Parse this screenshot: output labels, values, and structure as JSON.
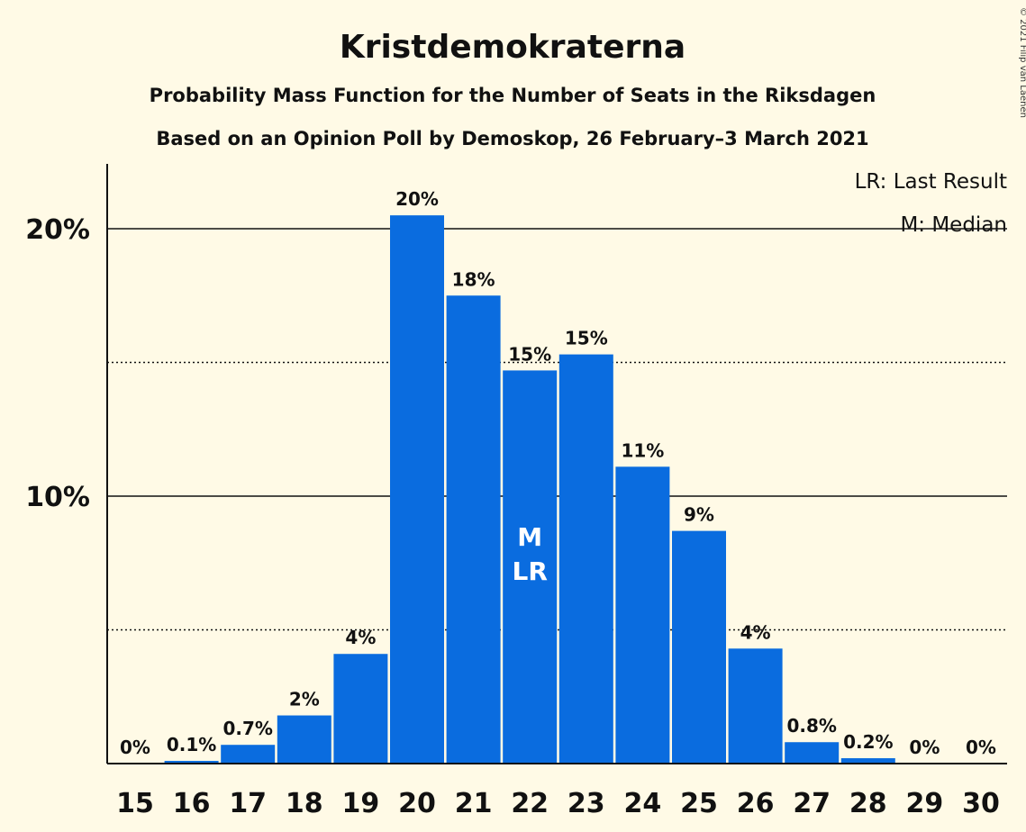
{
  "header": {
    "title": "Kristdemokraterna",
    "subtitle1": "Probability Mass Function for the Number of Seats in the Riksdagen",
    "subtitle2": "Based on an Opinion Poll by Demoskop, 26 February–3 March 2021"
  },
  "legend": {
    "last_result": "LR: Last Result",
    "median": "M: Median"
  },
  "credit": "© 2021 Filip van Laenen",
  "colors": {
    "background": "#fffae6",
    "bar": "#0a6cdf",
    "text": "#111111"
  },
  "chart_data": {
    "type": "bar",
    "categories": [
      "15",
      "16",
      "17",
      "18",
      "19",
      "20",
      "21",
      "22",
      "23",
      "24",
      "25",
      "26",
      "27",
      "28",
      "29",
      "30"
    ],
    "values": [
      0,
      0.1,
      0.7,
      1.8,
      4.1,
      20.5,
      17.5,
      14.7,
      15.3,
      11.1,
      8.7,
      4.3,
      0.8,
      0.2,
      0,
      0
    ],
    "data_labels": [
      "0%",
      "0.1%",
      "0.7%",
      "2%",
      "4%",
      "20%",
      "18%",
      "15%",
      "15%",
      "11%",
      "9%",
      "4%",
      "0.8%",
      "0.2%",
      "0%",
      "0%"
    ],
    "ylim": [
      0,
      22.5
    ],
    "yticks": [
      {
        "value": 10,
        "label": "10%",
        "style": "solid"
      },
      {
        "value": 20,
        "label": "20%",
        "style": "solid"
      }
    ],
    "minor_gridlines": [
      5,
      15
    ],
    "median_category": "22",
    "last_result_category": "22",
    "median_marker": "M",
    "last_result_marker": "LR",
    "legend_position": "top-right"
  }
}
